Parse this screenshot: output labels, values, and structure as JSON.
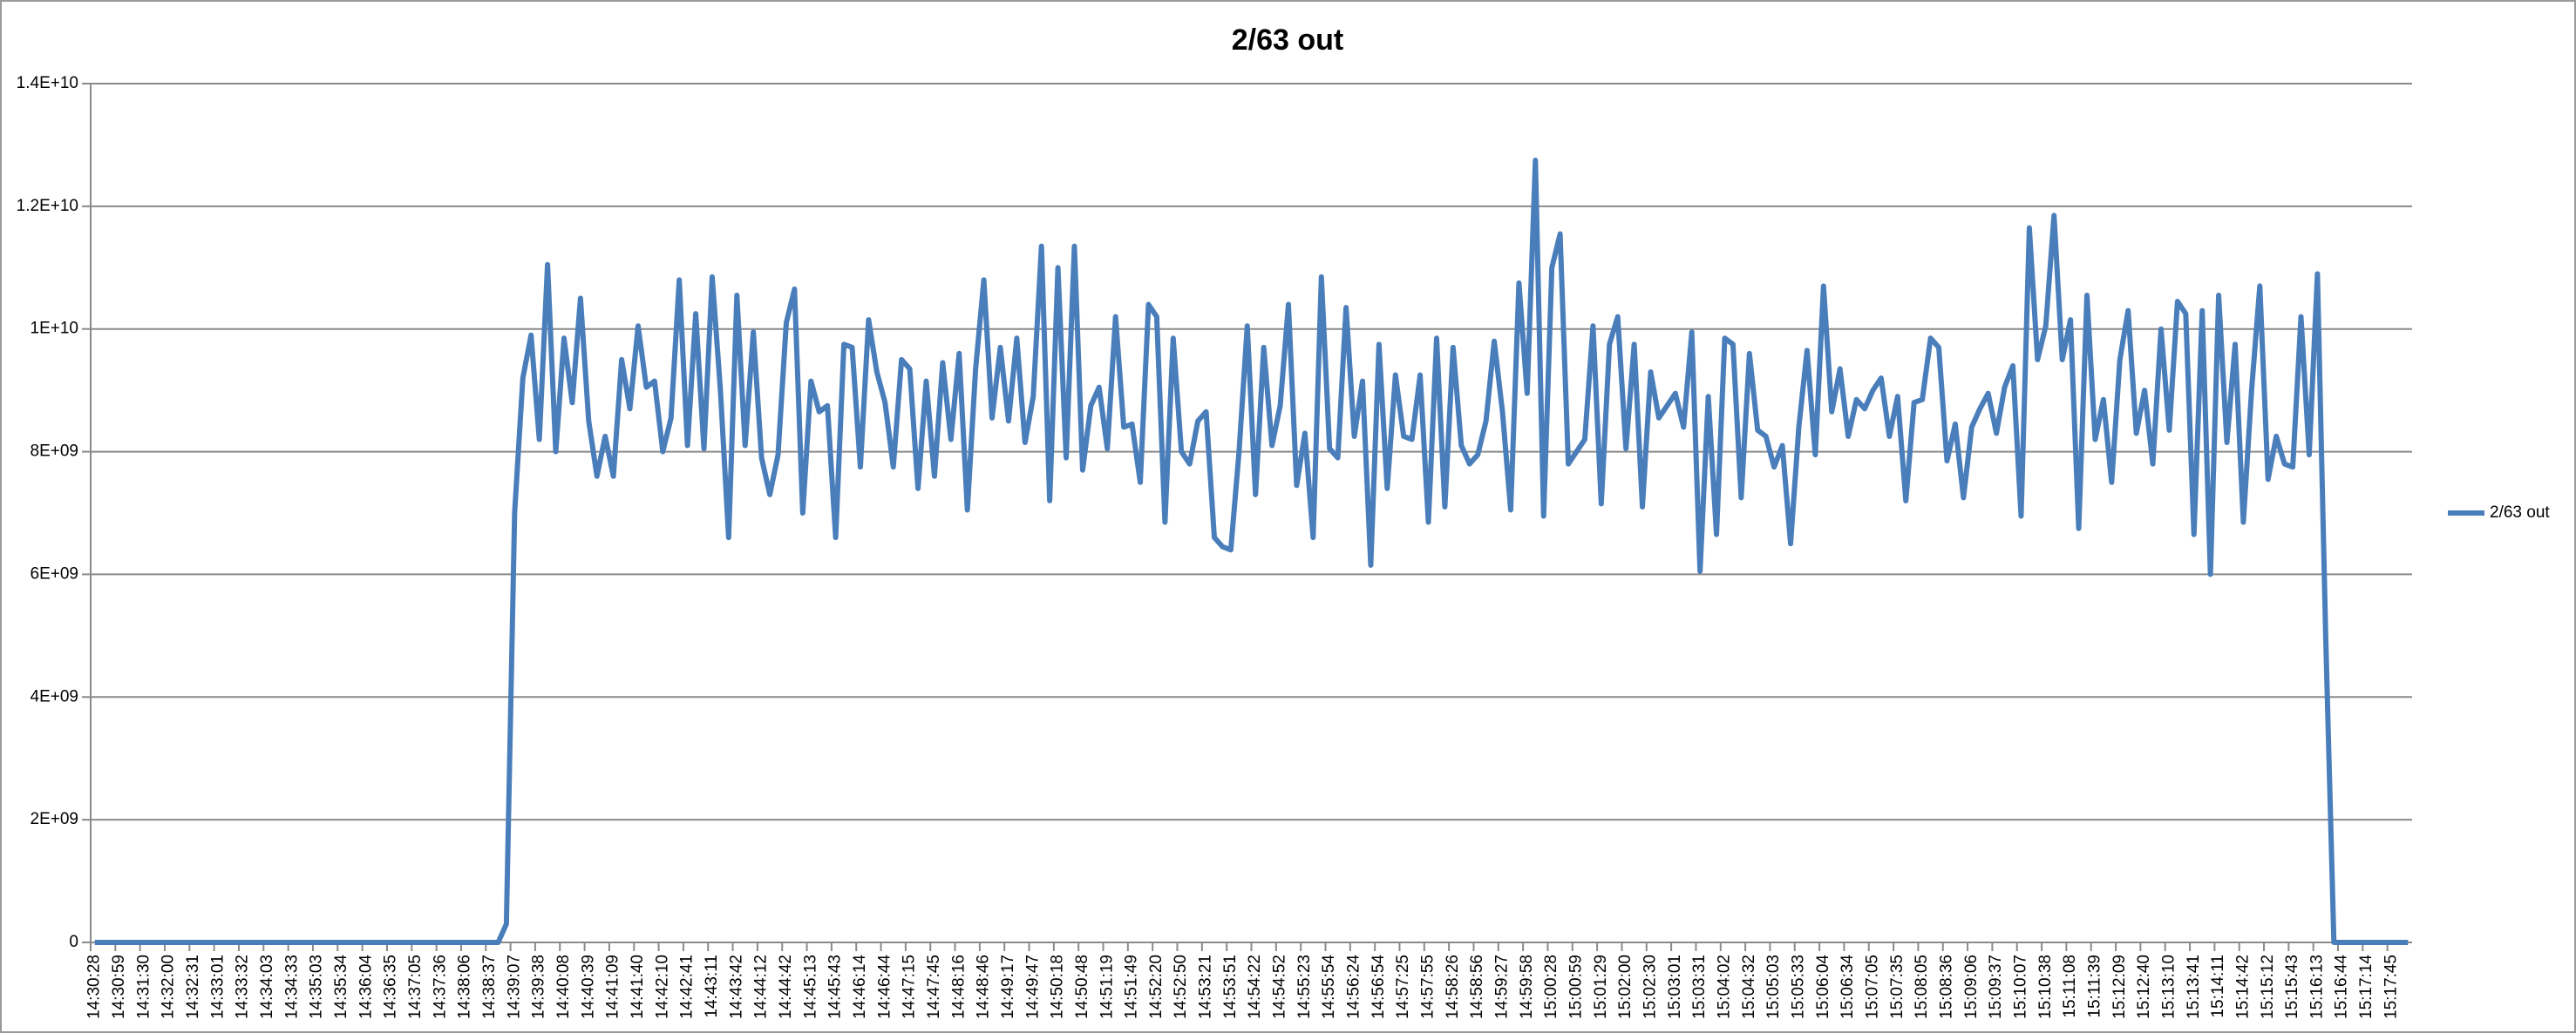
{
  "chart_data": {
    "type": "line",
    "title": "2/63 out",
    "categories": [
      "14:30:28",
      null,
      null,
      "14:30:59",
      null,
      null,
      "14:31:30",
      null,
      null,
      "14:32:00",
      null,
      null,
      "14:32:31",
      null,
      null,
      "14:33:01",
      null,
      null,
      "14:33:32",
      null,
      null,
      "14:34:03",
      null,
      null,
      "14:34:33",
      null,
      null,
      "14:35:03",
      null,
      null,
      "14:35:34",
      null,
      null,
      "14:36:04",
      null,
      null,
      "14:36:35",
      null,
      null,
      "14:37:05",
      null,
      null,
      "14:37:36",
      null,
      null,
      "14:38:06",
      null,
      null,
      "14:38:37",
      null,
      null,
      "14:39:07",
      null,
      null,
      "14:39:38",
      null,
      null,
      "14:40:08",
      null,
      null,
      "14:40:39",
      null,
      null,
      "14:41:09",
      null,
      null,
      "14:41:40",
      null,
      null,
      "14:42:10",
      null,
      null,
      "14:42:41",
      null,
      null,
      "14:43:11",
      null,
      null,
      "14:43:42",
      null,
      null,
      "14:44:12",
      null,
      null,
      "14:44:42",
      null,
      null,
      "14:45:13",
      null,
      null,
      "14:45:43",
      null,
      null,
      "14:46:14",
      null,
      null,
      "14:46:44",
      null,
      null,
      "14:47:15",
      null,
      null,
      "14:47:45",
      null,
      null,
      "14:48:16",
      null,
      null,
      "14:48:46",
      null,
      null,
      "14:49:17",
      null,
      null,
      "14:49:47",
      null,
      null,
      "14:50:18",
      null,
      null,
      "14:50:48",
      null,
      null,
      "14:51:19",
      null,
      null,
      "14:51:49",
      null,
      null,
      "14:52:20",
      null,
      null,
      "14:52:50",
      null,
      null,
      "14:53:21",
      null,
      null,
      "14:53:51",
      null,
      null,
      "14:54:22",
      null,
      null,
      "14:54:52",
      null,
      null,
      "14:55:23",
      null,
      null,
      "14:55:54",
      null,
      null,
      "14:56:24",
      null,
      null,
      "14:56:54",
      null,
      null,
      "14:57:25",
      null,
      null,
      "14:57:55",
      null,
      null,
      "14:58:26",
      null,
      null,
      "14:58:56",
      null,
      null,
      "14:59:27",
      null,
      null,
      "14:59:58",
      null,
      null,
      "15:00:28",
      null,
      null,
      "15:00:59",
      null,
      null,
      "15:01:29",
      null,
      null,
      "15:02:00",
      null,
      null,
      "15:02:30",
      null,
      null,
      "15:03:01",
      null,
      null,
      "15:03:31",
      null,
      null,
      "15:04:02",
      null,
      null,
      "15:04:32",
      null,
      null,
      "15:05:03",
      null,
      null,
      "15:05:33",
      null,
      null,
      "15:06:04",
      null,
      null,
      "15:06:34",
      null,
      null,
      "15:07:05",
      null,
      null,
      "15:07:35",
      null,
      null,
      "15:08:05",
      null,
      null,
      "15:08:36",
      null,
      null,
      "15:09:06",
      null,
      null,
      "15:09:37",
      null,
      null,
      "15:10:07",
      null,
      null,
      "15:10:38",
      null,
      null,
      "15:11:08",
      null,
      null,
      "15:11:39",
      null,
      null,
      "15:12:09",
      null,
      null,
      "15:12:40",
      null,
      null,
      "15:13:10",
      null,
      null,
      "15:13:41",
      null,
      null,
      "15:14:11",
      null,
      null,
      "15:14:42",
      null,
      null,
      "15:15:12",
      null,
      null,
      "15:15:43",
      null,
      null,
      "15:16:13",
      null,
      null,
      "15:16:44",
      null,
      null,
      "15:17:14",
      null,
      null,
      "15:17:45",
      null,
      null
    ],
    "series": [
      {
        "name": "2/63 out",
        "color": "#4a7ebb",
        "values": [
          0,
          0,
          0,
          0,
          0,
          0,
          0,
          0,
          0,
          0,
          0,
          0,
          0,
          0,
          0,
          0,
          0,
          0,
          0,
          0,
          0,
          0,
          0,
          0,
          0,
          0,
          0,
          0,
          0,
          0,
          0,
          0,
          0,
          0,
          0,
          0,
          0,
          0,
          0,
          0,
          0,
          0,
          0,
          0,
          0,
          0,
          0,
          0,
          0,
          0,
          300000000,
          7000000000,
          9200000000,
          9900000000,
          8200000000,
          11050000000,
          8000000000,
          9850000000,
          8800000000,
          10500000000,
          8500000000,
          7600000000,
          8250000000,
          7600000000,
          9500000000,
          8700000000,
          10050000000,
          9050000000,
          9150000000,
          8000000000,
          8550000000,
          10800000000,
          8100000000,
          10250000000,
          8050000000,
          10850000000,
          9000000000,
          6600000000,
          10550000000,
          8100000000,
          9950000000,
          7900000000,
          7300000000,
          7950000000,
          10100000000,
          10650000000,
          7000000000,
          9150000000,
          8650000000,
          8750000000,
          6600000000,
          9750000000,
          9700000000,
          7750000000,
          10150000000,
          9300000000,
          8800000000,
          7750000000,
          9500000000,
          9350000000,
          7400000000,
          9150000000,
          7600000000,
          9450000000,
          8200000000,
          9600000000,
          7050000000,
          9350000000,
          10800000000,
          8550000000,
          9700000000,
          8500000000,
          9850000000,
          8150000000,
          8900000000,
          11350000000,
          7200000000,
          11000000000,
          7900000000,
          11350000000,
          7700000000,
          8750000000,
          9050000000,
          8050000000,
          10200000000,
          8400000000,
          8450000000,
          7500000000,
          10400000000,
          10200000000,
          6850000000,
          9850000000,
          8000000000,
          7800000000,
          8500000000,
          8650000000,
          6600000000,
          6450000000,
          6400000000,
          8000000000,
          10050000000,
          7300000000,
          9700000000,
          8100000000,
          8750000000,
          10400000000,
          7450000000,
          8300000000,
          6600000000,
          10850000000,
          8050000000,
          7900000000,
          10350000000,
          8250000000,
          9150000000,
          6150000000,
          9750000000,
          7400000000,
          9250000000,
          8250000000,
          8200000000,
          9250000000,
          6850000000,
          9850000000,
          7100000000,
          9700000000,
          8100000000,
          7800000000,
          7950000000,
          8500000000,
          9800000000,
          8650000000,
          7050000000,
          10750000000,
          8950000000,
          12750000000,
          6950000000,
          11000000000,
          11550000000,
          7800000000,
          8000000000,
          8200000000,
          10050000000,
          7150000000,
          9750000000,
          10200000000,
          8050000000,
          9750000000,
          7100000000,
          9300000000,
          8550000000,
          8750000000,
          8950000000,
          8400000000,
          9950000000,
          6050000000,
          8900000000,
          6650000000,
          9850000000,
          9750000000,
          7250000000,
          9600000000,
          8350000000,
          8250000000,
          7750000000,
          8100000000,
          6500000000,
          8400000000,
          9650000000,
          7950000000,
          10700000000,
          8650000000,
          9350000000,
          8250000000,
          8850000000,
          8700000000,
          9000000000,
          9200000000,
          8250000000,
          8900000000,
          7200000000,
          8800000000,
          8850000000,
          9850000000,
          9700000000,
          7850000000,
          8450000000,
          7250000000,
          8400000000,
          8700000000,
          8950000000,
          8300000000,
          9050000000,
          9400000000,
          6950000000,
          11650000000,
          9500000000,
          10050000000,
          11850000000,
          9500000000,
          10150000000,
          6750000000,
          10550000000,
          8200000000,
          8850000000,
          7500000000,
          9500000000,
          10300000000,
          8300000000,
          9000000000,
          7800000000,
          10000000000,
          8350000000,
          10450000000,
          10250000000,
          6650000000,
          10300000000,
          6000000000,
          10550000000,
          8150000000,
          9750000000,
          6850000000,
          9000000000,
          10700000000,
          7550000000,
          8250000000,
          7800000000,
          7750000000,
          10200000000,
          7950000000,
          10900000000,
          5000000000,
          0,
          0,
          0,
          0,
          0,
          0,
          0,
          0,
          0,
          0
        ]
      }
    ],
    "ylim": [
      0,
      14000000000
    ],
    "yticks": [
      0,
      {
        "value": 2000000000,
        "label": "2E+09"
      },
      {
        "value": 4000000000,
        "label": "4E+09"
      },
      {
        "value": 6000000000,
        "label": "6E+09"
      },
      {
        "value": 8000000000,
        "label": "8E+09"
      },
      {
        "value": 10000000000,
        "label": "1E+10"
      },
      {
        "value": 12000000000,
        "label": "1.2E+10"
      },
      {
        "value": 14000000000,
        "label": "1.4E+10"
      }
    ],
    "grid": true,
    "legend": "right"
  }
}
